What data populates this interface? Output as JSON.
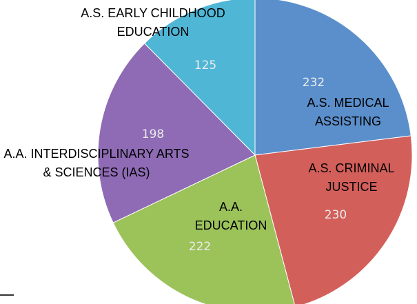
{
  "chart_data": {
    "type": "pie",
    "categories": [
      "A.S. MEDICAL ASSISTING",
      "A.S. CRIMINAL JUSTICE",
      "A.A. EDUCATION",
      "A.A. INTERDISCIPLINARY ARTS & SCIENCES (IAS)",
      "A.S. EARLY CHILDHOOD EDUCATION"
    ],
    "values": [
      232,
      230,
      222,
      198,
      125
    ],
    "colors": [
      "#5b8fcc",
      "#d35f5a",
      "#9cc25a",
      "#8e6bb4",
      "#4fb6d6"
    ]
  }
}
